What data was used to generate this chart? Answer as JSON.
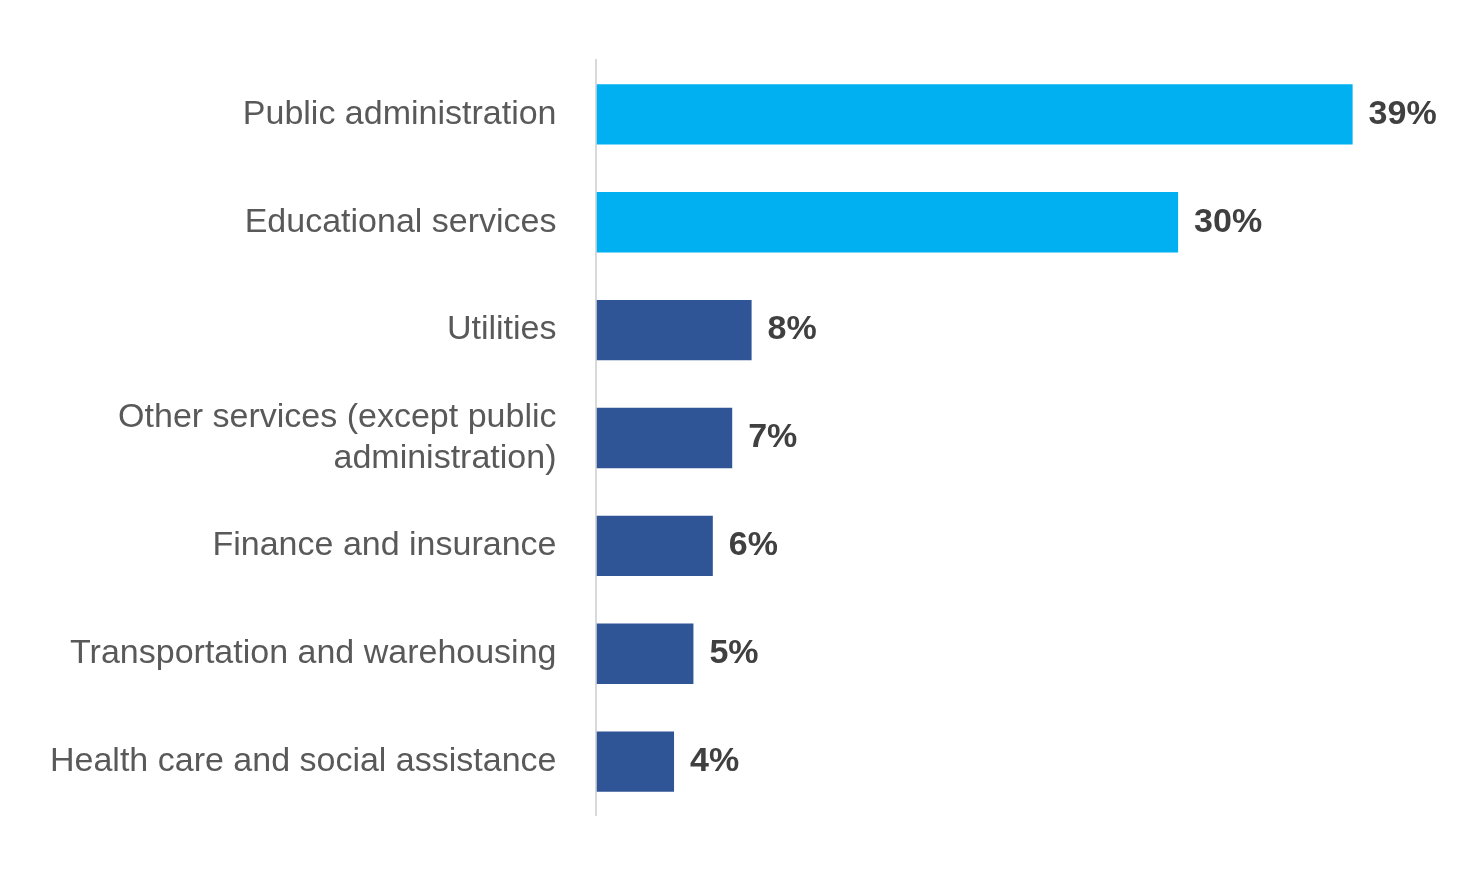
{
  "chart_data": {
    "type": "bar",
    "orientation": "horizontal",
    "categories": [
      "Public administration",
      "Educational services",
      "Utilities",
      "Other services (except public administration)",
      "Finance and insurance",
      "Transportation and warehousing",
      "Health care and social assistance"
    ],
    "values": [
      39,
      30,
      8,
      7,
      6,
      5,
      4
    ],
    "colors": [
      "#00b0f0",
      "#00b0f0",
      "#2f5597",
      "#2f5597",
      "#2f5597",
      "#2f5597",
      "#2f5597"
    ],
    "value_labels": [
      "39%",
      "30%",
      "8%",
      "7%",
      "6%",
      "5%",
      "4%"
    ],
    "tick_labels": "y"
  }
}
